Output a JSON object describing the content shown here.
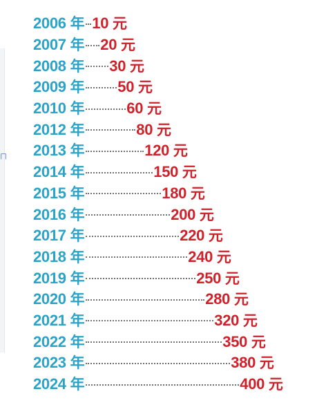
{
  "side_glyph": "ㄇ",
  "rows": [
    {
      "year": "2006",
      "year_unit": "年",
      "value": "10",
      "value_unit": "元"
    },
    {
      "year": "2007",
      "year_unit": "年",
      "value": "20",
      "value_unit": "元"
    },
    {
      "year": "2008",
      "year_unit": "年",
      "value": "30",
      "value_unit": "元"
    },
    {
      "year": "2009",
      "year_unit": "年",
      "value": "50",
      "value_unit": "元"
    },
    {
      "year": "2010",
      "year_unit": "年",
      "value": "60",
      "value_unit": "元"
    },
    {
      "year": "2012",
      "year_unit": "年",
      "value": "80",
      "value_unit": "元"
    },
    {
      "year": "2013",
      "year_unit": "年",
      "value": "120",
      "value_unit": "元"
    },
    {
      "year": "2014",
      "year_unit": "年",
      "value": "150",
      "value_unit": "元"
    },
    {
      "year": "2015",
      "year_unit": "年",
      "value": "180",
      "value_unit": "元"
    },
    {
      "year": "2016",
      "year_unit": "年",
      "value": "200",
      "value_unit": "元"
    },
    {
      "year": "2017",
      "year_unit": "年",
      "value": "220",
      "value_unit": "元"
    },
    {
      "year": "2018",
      "year_unit": "年",
      "value": "240",
      "value_unit": "元"
    },
    {
      "year": "2019",
      "year_unit": "年",
      "value": "250",
      "value_unit": "元"
    },
    {
      "year": "2020",
      "year_unit": "年",
      "value": "280",
      "value_unit": "元"
    },
    {
      "year": "2021",
      "year_unit": "年",
      "value": "320",
      "value_unit": "元"
    },
    {
      "year": "2022",
      "year_unit": "年",
      "value": "350",
      "value_unit": "元"
    },
    {
      "year": "2023",
      "year_unit": "年",
      "value": "380",
      "value_unit": "元"
    },
    {
      "year": "2024",
      "year_unit": "年",
      "value": "400",
      "value_unit": "元"
    }
  ],
  "colors": {
    "year": "#2aa3c8",
    "value": "#d0202a",
    "leader_dots": "#707070"
  }
}
